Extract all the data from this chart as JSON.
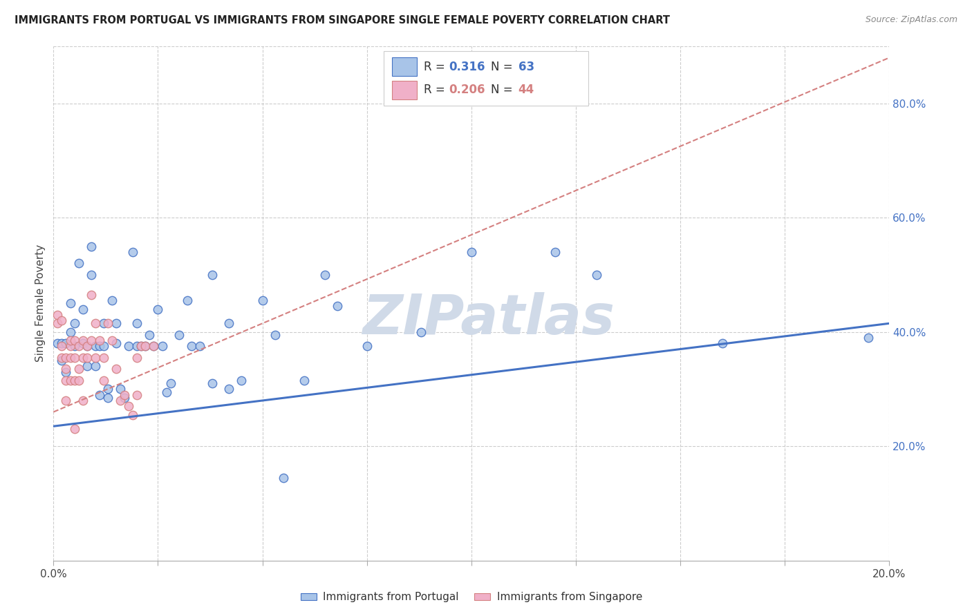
{
  "title": "IMMIGRANTS FROM PORTUGAL VS IMMIGRANTS FROM SINGAPORE SINGLE FEMALE POVERTY CORRELATION CHART",
  "source": "Source: ZipAtlas.com",
  "ylabel": "Single Female Poverty",
  "ylabel_right_ticks": [
    "80.0%",
    "60.0%",
    "40.0%",
    "20.0%"
  ],
  "ylabel_right_vals": [
    0.8,
    0.6,
    0.4,
    0.2
  ],
  "portugal_color": "#a8c4e8",
  "singapore_color": "#f0b0c8",
  "portugal_line_color": "#4472c4",
  "singapore_line_color": "#d48080",
  "portugal_scatter": [
    [
      0.001,
      0.38
    ],
    [
      0.002,
      0.38
    ],
    [
      0.002,
      0.35
    ],
    [
      0.003,
      0.38
    ],
    [
      0.003,
      0.33
    ],
    [
      0.004,
      0.4
    ],
    [
      0.004,
      0.45
    ],
    [
      0.005,
      0.375
    ],
    [
      0.005,
      0.415
    ],
    [
      0.006,
      0.52
    ],
    [
      0.007,
      0.44
    ],
    [
      0.007,
      0.38
    ],
    [
      0.008,
      0.375
    ],
    [
      0.008,
      0.34
    ],
    [
      0.009,
      0.5
    ],
    [
      0.009,
      0.55
    ],
    [
      0.01,
      0.375
    ],
    [
      0.01,
      0.34
    ],
    [
      0.011,
      0.375
    ],
    [
      0.011,
      0.29
    ],
    [
      0.012,
      0.415
    ],
    [
      0.012,
      0.375
    ],
    [
      0.013,
      0.285
    ],
    [
      0.013,
      0.3
    ],
    [
      0.014,
      0.455
    ],
    [
      0.015,
      0.38
    ],
    [
      0.015,
      0.415
    ],
    [
      0.016,
      0.3
    ],
    [
      0.017,
      0.285
    ],
    [
      0.018,
      0.375
    ],
    [
      0.019,
      0.54
    ],
    [
      0.02,
      0.375
    ],
    [
      0.02,
      0.415
    ],
    [
      0.021,
      0.375
    ],
    [
      0.022,
      0.375
    ],
    [
      0.023,
      0.395
    ],
    [
      0.024,
      0.375
    ],
    [
      0.025,
      0.44
    ],
    [
      0.026,
      0.375
    ],
    [
      0.027,
      0.295
    ],
    [
      0.028,
      0.31
    ],
    [
      0.03,
      0.395
    ],
    [
      0.032,
      0.455
    ],
    [
      0.033,
      0.375
    ],
    [
      0.035,
      0.375
    ],
    [
      0.038,
      0.5
    ],
    [
      0.038,
      0.31
    ],
    [
      0.042,
      0.415
    ],
    [
      0.042,
      0.3
    ],
    [
      0.045,
      0.315
    ],
    [
      0.05,
      0.455
    ],
    [
      0.053,
      0.395
    ],
    [
      0.055,
      0.145
    ],
    [
      0.06,
      0.315
    ],
    [
      0.065,
      0.5
    ],
    [
      0.068,
      0.445
    ],
    [
      0.075,
      0.375
    ],
    [
      0.088,
      0.4
    ],
    [
      0.1,
      0.54
    ],
    [
      0.12,
      0.54
    ],
    [
      0.13,
      0.5
    ],
    [
      0.16,
      0.38
    ],
    [
      0.195,
      0.39
    ]
  ],
  "singapore_scatter": [
    [
      0.001,
      0.43
    ],
    [
      0.001,
      0.415
    ],
    [
      0.002,
      0.375
    ],
    [
      0.002,
      0.42
    ],
    [
      0.002,
      0.355
    ],
    [
      0.003,
      0.335
    ],
    [
      0.003,
      0.355
    ],
    [
      0.003,
      0.315
    ],
    [
      0.003,
      0.28
    ],
    [
      0.004,
      0.375
    ],
    [
      0.004,
      0.355
    ],
    [
      0.004,
      0.385
    ],
    [
      0.004,
      0.315
    ],
    [
      0.005,
      0.385
    ],
    [
      0.005,
      0.355
    ],
    [
      0.005,
      0.315
    ],
    [
      0.005,
      0.23
    ],
    [
      0.006,
      0.375
    ],
    [
      0.006,
      0.335
    ],
    [
      0.006,
      0.315
    ],
    [
      0.007,
      0.385
    ],
    [
      0.007,
      0.355
    ],
    [
      0.007,
      0.28
    ],
    [
      0.008,
      0.375
    ],
    [
      0.008,
      0.355
    ],
    [
      0.009,
      0.465
    ],
    [
      0.009,
      0.385
    ],
    [
      0.01,
      0.415
    ],
    [
      0.01,
      0.355
    ],
    [
      0.011,
      0.385
    ],
    [
      0.012,
      0.355
    ],
    [
      0.012,
      0.315
    ],
    [
      0.013,
      0.415
    ],
    [
      0.014,
      0.385
    ],
    [
      0.015,
      0.335
    ],
    [
      0.016,
      0.28
    ],
    [
      0.017,
      0.29
    ],
    [
      0.018,
      0.27
    ],
    [
      0.019,
      0.255
    ],
    [
      0.02,
      0.355
    ],
    [
      0.02,
      0.29
    ],
    [
      0.021,
      0.375
    ],
    [
      0.022,
      0.375
    ],
    [
      0.024,
      0.375
    ]
  ],
  "portugal_trend_x": [
    0.0,
    0.2
  ],
  "portugal_trend_y": [
    0.235,
    0.415
  ],
  "singapore_trend_x": [
    0.0,
    0.2
  ],
  "singapore_trend_y": [
    0.26,
    0.88
  ],
  "xlim": [
    0.0,
    0.2
  ],
  "ylim": [
    0.0,
    0.9
  ],
  "xticks": [
    0.0,
    0.025,
    0.05,
    0.075,
    0.1,
    0.125,
    0.15,
    0.175,
    0.2
  ],
  "xtick_labels": [
    "0.0%",
    "",
    "",
    "",
    "",
    "",
    "",
    "",
    "20.0%"
  ],
  "background_color": "#ffffff",
  "grid_color": "#cccccc",
  "watermark_text": "ZIPatlas",
  "watermark_color": "#d0dae8"
}
